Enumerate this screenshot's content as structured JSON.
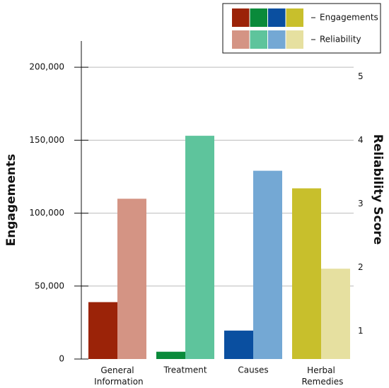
{
  "chart_data": {
    "type": "bar",
    "categories": [
      "General Information",
      "Treatment",
      "Causes",
      "Herbal Remedies"
    ],
    "y_label": "Engagements",
    "y2_label": "Reliability Score",
    "series": [
      {
        "name": "Engagements",
        "colors": [
          "#9b2308",
          "#0a8a3a",
          "#0a4fa0",
          "#c8bf2c"
        ],
        "values": [
          39000,
          5000,
          19500,
          117000
        ]
      },
      {
        "name": "Reliability",
        "axis": "y2",
        "colors": [
          "#d49484",
          "#5ec49c",
          "#74a8d4",
          "#e6e0a0"
        ],
        "values": [
          3.08,
          4.07,
          3.52,
          1.98
        ]
      }
    ],
    "ylim": [
      0,
      218000
    ],
    "yticks": [
      {
        "value": 0,
        "label": "0"
      },
      {
        "value": 50000,
        "label": "50,000"
      },
      {
        "value": 100000,
        "label": "100,000"
      },
      {
        "value": 150000,
        "label": "150,000"
      },
      {
        "value": 200000,
        "label": "200,000"
      }
    ],
    "y2lim": [
      0.56,
      5.56
    ],
    "y2ticks": [
      1,
      2,
      3,
      4,
      5
    ],
    "grid": true,
    "legend": "top-right"
  }
}
